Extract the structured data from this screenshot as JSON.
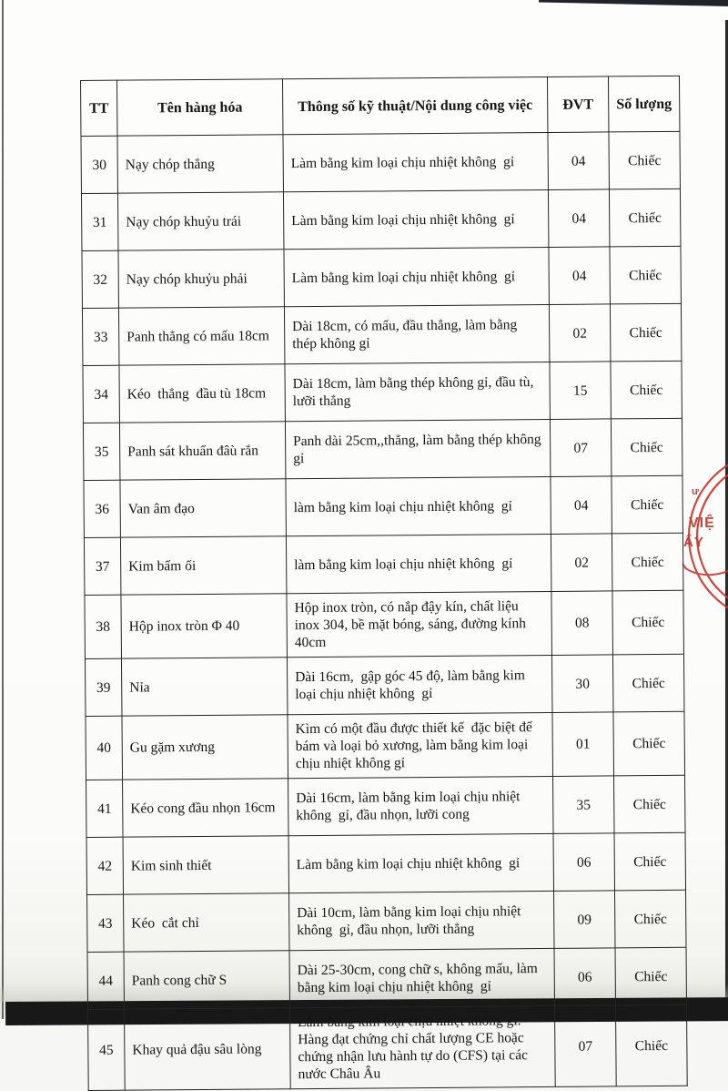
{
  "table": {
    "headers": [
      "TT",
      "Tên hàng hóa",
      "Thông số kỹ thuật/Nội dung công việc",
      "ĐVT",
      "Số lượng"
    ],
    "rows": [
      {
        "tt": "30",
        "name": "Nạy chóp thẳng",
        "spec": "Làm bằng kim loại chịu nhiệt không  gỉ",
        "dvt": "04",
        "qty": "Chiếc"
      },
      {
        "tt": "31",
        "name": "Nạy chóp khuỷu trái",
        "spec": "Làm bằng kim loại chịu nhiệt không  gỉ",
        "dvt": "04",
        "qty": "Chiếc"
      },
      {
        "tt": "32",
        "name": "Nạy chóp khuỷu phải",
        "spec": "Làm bằng kim loại chịu nhiệt không  gỉ",
        "dvt": "04",
        "qty": "Chiếc"
      },
      {
        "tt": "33",
        "name": "Panh thẳng có mấu 18cm",
        "spec": "Dài 18cm, có mấu, đầu thẳng, làm bằng thép không gỉ",
        "dvt": "02",
        "qty": "Chiếc"
      },
      {
        "tt": "34",
        "name": "Kéo  thẳng  đầu tù 18cm",
        "spec": "Dài 18cm, làm bằng thép không gỉ, đầu tù, lưỡi thẳng",
        "dvt": "15",
        "qty": "Chiếc"
      },
      {
        "tt": "35",
        "name": "Panh sát khuẩn đâù rắn",
        "spec": "Panh dài 25cm,,thẳng, làm bằng thép không gỉ",
        "dvt": "07",
        "qty": "Chiếc"
      },
      {
        "tt": "36",
        "name": "Van âm đạo",
        "spec": "làm bằng kim loại chịu nhiệt không  gỉ",
        "dvt": "04",
        "qty": "Chiếc"
      },
      {
        "tt": "37",
        "name": "Kim bấm ối",
        "spec": "làm bằng kim loại chịu nhiệt không  gỉ",
        "dvt": "02",
        "qty": "Chiếc"
      },
      {
        "tt": "38",
        "name": "Hộp inox tròn Φ 40",
        "spec": "Hộp inox tròn, có nắp đậy kín, chất liệu inox 304, bề mặt bóng, sáng, đường kính 40cm",
        "dvt": "08",
        "qty": "Chiếc"
      },
      {
        "tt": "39",
        "name": "Nỉa",
        "spec": "Dài 16cm,  gập góc 45 độ, làm bằng kim loại chịu nhiệt không  gỉ",
        "dvt": "30",
        "qty": "Chiếc"
      },
      {
        "tt": "40",
        "name": "Gu gặm xương",
        "spec": "Kìm có một đầu được thiết kế  đặc biệt để bám và loại bỏ xương, làm bằng kim loại chịu nhiệt không gỉ",
        "dvt": "01",
        "qty": "Chiếc"
      },
      {
        "tt": "41",
        "name": "Kéo cong đầu nhọn 16cm",
        "spec": "Dài 16cm, làm bằng kim loại chịu nhiệt không  gỉ, đầu nhọn, lưỡi cong",
        "dvt": "35",
        "qty": "Chiếc"
      },
      {
        "tt": "42",
        "name": "Kim sinh thiết",
        "spec": "Làm bằng kim loại chịu nhiệt không  gỉ",
        "dvt": "06",
        "qty": "Chiếc"
      },
      {
        "tt": "43",
        "name": "Kéo  cắt chỉ",
        "spec": "Dài 10cm, làm bằng kim loại chịu nhiệt không  gỉ, đầu nhọn, lưỡi thẳng",
        "dvt": "09",
        "qty": "Chiếc"
      },
      {
        "tt": "44",
        "name": "Panh cong chữ S",
        "spec": "Dài 25-30cm, cong chữ s, không mấu, làm bằng kim loại chịu nhiệt không  gỉ",
        "dvt": "06",
        "qty": "Chiếc"
      },
      {
        "tt": "45",
        "name": "Khay quả đậu sâu lòng",
        "spec": "Làm bằng kim loại chịu nhiệt không gỉ. Hàng đạt chứng chỉ chất lượng CE hoặc chứng nhận lưu hành tự do (CFS) tại các nước Châu Âu",
        "dvt": "07",
        "qty": "Chiếc"
      }
    ]
  },
  "stamp": {
    "line1": "VIỆ",
    "line2": "ẤY",
    "color": "#c6352c"
  }
}
